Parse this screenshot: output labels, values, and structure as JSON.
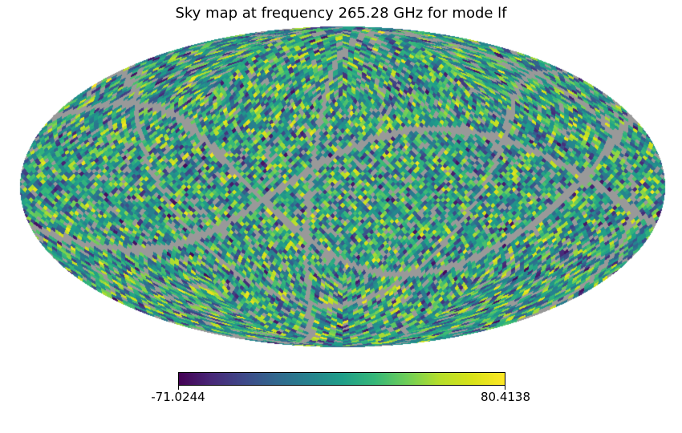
{
  "chart_data": {
    "type": "heatmap",
    "subtype": "healpix-sky-map",
    "projection": "mollweide",
    "title": "Sky map at frequency 265.28 GHz for mode lf",
    "frequency_ghz": 265.28,
    "mode": "lf",
    "colormap": "viridis",
    "vmin": -71.0244,
    "vmax": 80.4138,
    "colorbar": {
      "min_label": "-71.0244",
      "max_label": "80.4138"
    },
    "background_color": "#ffffff",
    "masked_color": "#999999",
    "outline_color": "#000000",
    "nside": 32,
    "seed": 7,
    "value_distribution": "triangular",
    "mask": {
      "random_fraction": 0.12,
      "great_circle_bands": [
        {
          "pole_lat": 50,
          "pole_lon": 39,
          "half_width_deg": 1.5
        },
        {
          "pole_lat": -7,
          "pole_lon": 72,
          "half_width_deg": 1.1
        },
        {
          "pole_lat": -62,
          "pole_lon": 55,
          "half_width_deg": 1.4
        },
        {
          "pole_lat": 33,
          "pole_lon": -12,
          "half_width_deg": 1.0
        }
      ]
    },
    "viridis_stops": [
      "#440154",
      "#482878",
      "#3e4989",
      "#31688e",
      "#26828e",
      "#1f9e89",
      "#35b779",
      "#6ece58",
      "#b5de2b",
      "#d8e219",
      "#fde725"
    ]
  }
}
